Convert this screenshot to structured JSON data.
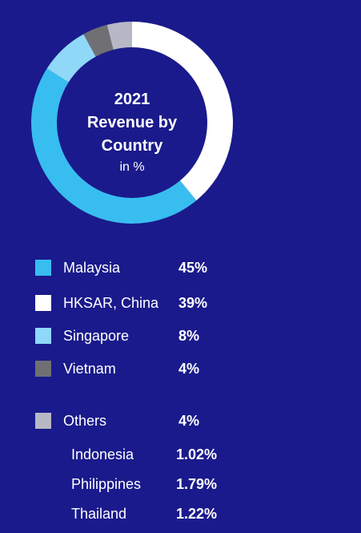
{
  "chart_data": {
    "type": "pie",
    "title": [
      "2021",
      "Revenue by",
      "Country"
    ],
    "unit": "in %",
    "slices": [
      {
        "name": "HKSAR, China",
        "value": 39,
        "label": "39%",
        "color": "#ffffff"
      },
      {
        "name": "Malaysia",
        "value": 45,
        "label": "45%",
        "color": "#38bdf0"
      },
      {
        "name": "Singapore",
        "value": 8,
        "label": "8%",
        "color": "#8fd8f8"
      },
      {
        "name": "Vietnam",
        "value": 4,
        "label": "4%",
        "color": "#707074"
      },
      {
        "name": "Others",
        "value": 4,
        "label": "4%",
        "color": "#b7b8c6"
      }
    ],
    "legend": [
      {
        "name": "Malaysia",
        "label": "45%",
        "color": "#38bdf0"
      },
      {
        "name": "HKSAR, China",
        "label": "39%",
        "color": "#ffffff"
      },
      {
        "name": "Singapore",
        "label": "8%",
        "color": "#8fd8f8"
      },
      {
        "name": "Vietnam",
        "label": "4%",
        "color": "#707074"
      },
      {
        "name": "Others",
        "label": "4%",
        "color": "#b7b8c6"
      }
    ],
    "others_breakdown": [
      {
        "name": "Indonesia",
        "label": "1.02%"
      },
      {
        "name": "Philippines",
        "label": "1.79%"
      },
      {
        "name": "Thailand",
        "label": "1.22%"
      }
    ]
  },
  "colors": {
    "background": "#1a1a8c",
    "text": "#ffffff"
  }
}
